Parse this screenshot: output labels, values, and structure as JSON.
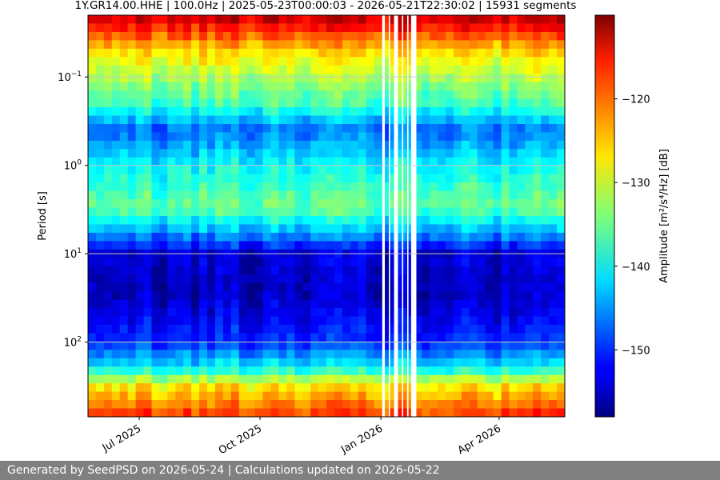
{
  "chart_data": {
    "type": "heatmap",
    "title": "1Y.GR14.00.HHE | 100.0Hz | 2025-05-23T00:00:03 - 2026-05-21T22:30:02 | 15931 segments",
    "ylabel": "Period [s]",
    "colorbar_label": "Amplitude [m²/s⁴/Hz] [dB]",
    "y_scale": "log",
    "y_inverted": true,
    "y_range": [
      0.02,
      700
    ],
    "x_range": [
      "2025-05-23",
      "2026-05-21"
    ],
    "x_ticks": [
      {
        "date": "2025-07-01",
        "label": "Jul 2025"
      },
      {
        "date": "2025-10-01",
        "label": "Oct 2025"
      },
      {
        "date": "2026-01-01",
        "label": "Jan 2026"
      },
      {
        "date": "2026-04-01",
        "label": "Apr 2026"
      }
    ],
    "y_ticks": [
      {
        "value": 0.1,
        "label_base": "10",
        "label_exp": "−1"
      },
      {
        "value": 1,
        "label_base": "10",
        "label_exp": "0"
      },
      {
        "value": 10,
        "label_base": "10",
        "label_exp": "1"
      },
      {
        "value": 100,
        "label_base": "10",
        "label_exp": "2"
      }
    ],
    "colorbar": {
      "colormap": "jet",
      "vmin": -158,
      "vmax": -110,
      "ticks": [
        -120,
        -130,
        -140,
        -150
      ]
    },
    "amplitude_profile_db": [
      {
        "period": 0.02,
        "amplitude": -113
      },
      {
        "period": 0.03,
        "amplitude": -118
      },
      {
        "period": 0.05,
        "amplitude": -126
      },
      {
        "period": 0.1,
        "amplitude": -132
      },
      {
        "period": 0.2,
        "amplitude": -137
      },
      {
        "period": 0.4,
        "amplitude": -147
      },
      {
        "period": 1,
        "amplitude": -140
      },
      {
        "period": 3,
        "amplitude": -135
      },
      {
        "period": 6,
        "amplitude": -145
      },
      {
        "period": 10,
        "amplitude": -154
      },
      {
        "period": 30,
        "amplitude": -155
      },
      {
        "period": 100,
        "amplitude": -150
      },
      {
        "period": 200,
        "amplitude": -140
      },
      {
        "period": 300,
        "amplitude": -128
      },
      {
        "period": 700,
        "amplitude": -118
      }
    ],
    "data_gaps": [
      [
        "2026-01-02",
        "2026-01-04"
      ],
      [
        "2026-01-07",
        "2026-01-08"
      ],
      [
        "2026-01-11",
        "2026-01-14"
      ],
      [
        "2026-01-17",
        "2026-01-18"
      ],
      [
        "2026-01-21",
        "2026-01-22"
      ],
      [
        "2026-01-24",
        "2026-01-28"
      ]
    ],
    "grid": true,
    "colors": {
      "grid": "#c8c8c8",
      "footer_background": "#808080",
      "footer_text": "#ffffff"
    }
  },
  "footer": {
    "text": "Generated by SeedPSD on 2026-05-24 | Calculations updated on 2026-05-22"
  }
}
